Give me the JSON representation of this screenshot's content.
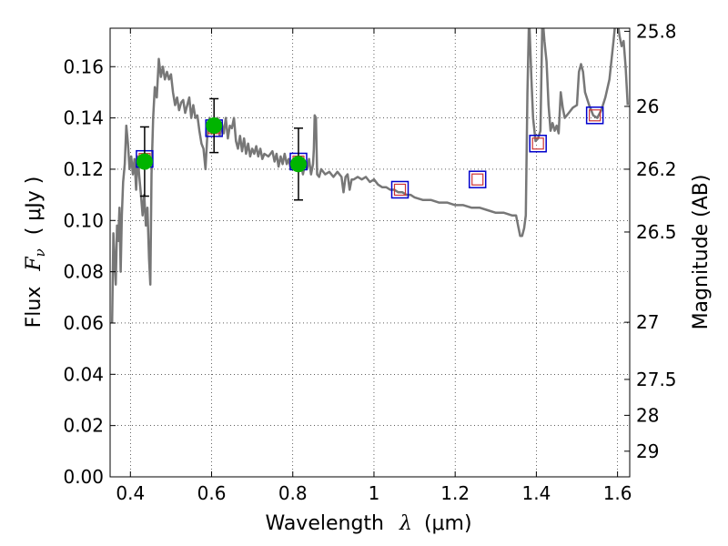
{
  "chart_data": {
    "type": "line",
    "xlabel": {
      "prefix": "Wavelength",
      "symbol": "λ",
      "unit": "(μm)"
    },
    "ylabel": {
      "prefix": "Flux",
      "symbol": "F",
      "subscript": "ν",
      "unit": "( μJy )"
    },
    "y2label": "Magnitude (AB)",
    "xlim": [
      0.35,
      1.63
    ],
    "ylim": [
      0.0,
      0.175
    ],
    "grid": true,
    "x_ticks": [
      {
        "value": 0.4,
        "label": "0.4"
      },
      {
        "value": 0.6,
        "label": "0.6"
      },
      {
        "value": 0.8,
        "label": "0.8"
      },
      {
        "value": 1.0,
        "label": "1"
      },
      {
        "value": 1.2,
        "label": "1.2"
      },
      {
        "value": 1.4,
        "label": "1.4"
      },
      {
        "value": 1.6,
        "label": "1.6"
      }
    ],
    "y_ticks": [
      {
        "value": 0.0,
        "label": "0.00"
      },
      {
        "value": 0.02,
        "label": "0.02"
      },
      {
        "value": 0.04,
        "label": "0.04"
      },
      {
        "value": 0.06,
        "label": "0.06"
      },
      {
        "value": 0.08,
        "label": "0.08"
      },
      {
        "value": 0.1,
        "label": "0.10"
      },
      {
        "value": 0.12,
        "label": "0.12"
      },
      {
        "value": 0.14,
        "label": "0.14"
      },
      {
        "value": 0.16,
        "label": "0.16"
      }
    ],
    "y2_ticks": [
      {
        "flux": 0.1738,
        "label": "25.8"
      },
      {
        "flux": 0.1445,
        "label": "26"
      },
      {
        "flux": 0.12,
        "label": "26.2"
      },
      {
        "flux": 0.0955,
        "label": "26.5"
      },
      {
        "flux": 0.0603,
        "label": "27"
      },
      {
        "flux": 0.038,
        "label": "27.5"
      },
      {
        "flux": 0.024,
        "label": "28"
      },
      {
        "flux": 0.01,
        "label": "29"
      }
    ],
    "model_spectrum": {
      "color": "#777777",
      "points": [
        [
          0.355,
          0.06
        ],
        [
          0.358,
          0.095
        ],
        [
          0.361,
          0.085
        ],
        [
          0.364,
          0.075
        ],
        [
          0.367,
          0.098
        ],
        [
          0.37,
          0.092
        ],
        [
          0.373,
          0.105
        ],
        [
          0.376,
          0.08
        ],
        [
          0.379,
          0.102
        ],
        [
          0.382,
          0.115
        ],
        [
          0.386,
          0.122
        ],
        [
          0.39,
          0.137
        ],
        [
          0.394,
          0.13
        ],
        [
          0.398,
          0.12
        ],
        [
          0.402,
          0.125
        ],
        [
          0.406,
          0.118
        ],
        [
          0.41,
          0.124
        ],
        [
          0.414,
          0.112
        ],
        [
          0.418,
          0.125
        ],
        [
          0.422,
          0.117
        ],
        [
          0.426,
          0.11
        ],
        [
          0.43,
          0.102
        ],
        [
          0.434,
          0.11
        ],
        [
          0.438,
          0.098
        ],
        [
          0.442,
          0.105
        ],
        [
          0.446,
          0.085
        ],
        [
          0.449,
          0.075
        ],
        [
          0.452,
          0.118
        ],
        [
          0.456,
          0.14
        ],
        [
          0.46,
          0.152
        ],
        [
          0.465,
          0.148
        ],
        [
          0.47,
          0.163
        ],
        [
          0.475,
          0.156
        ],
        [
          0.48,
          0.16
        ],
        [
          0.485,
          0.155
        ],
        [
          0.49,
          0.158
        ],
        [
          0.495,
          0.155
        ],
        [
          0.5,
          0.157
        ],
        [
          0.505,
          0.15
        ],
        [
          0.51,
          0.145
        ],
        [
          0.515,
          0.148
        ],
        [
          0.52,
          0.143
        ],
        [
          0.525,
          0.146
        ],
        [
          0.53,
          0.147
        ],
        [
          0.535,
          0.142
        ],
        [
          0.54,
          0.145
        ],
        [
          0.545,
          0.148
        ],
        [
          0.55,
          0.14
        ],
        [
          0.555,
          0.145
        ],
        [
          0.56,
          0.14
        ],
        [
          0.565,
          0.141
        ],
        [
          0.57,
          0.135
        ],
        [
          0.575,
          0.13
        ],
        [
          0.58,
          0.128
        ],
        [
          0.585,
          0.12
        ],
        [
          0.59,
          0.135
        ],
        [
          0.595,
          0.14
        ],
        [
          0.6,
          0.136
        ],
        [
          0.605,
          0.138
        ],
        [
          0.61,
          0.135
        ],
        [
          0.615,
          0.14
        ],
        [
          0.62,
          0.133
        ],
        [
          0.625,
          0.138
        ],
        [
          0.63,
          0.134
        ],
        [
          0.635,
          0.14
        ],
        [
          0.64,
          0.132
        ],
        [
          0.645,
          0.137
        ],
        [
          0.65,
          0.136
        ],
        [
          0.655,
          0.14
        ],
        [
          0.66,
          0.131
        ],
        [
          0.665,
          0.128
        ],
        [
          0.67,
          0.133
        ],
        [
          0.675,
          0.127
        ],
        [
          0.68,
          0.132
        ],
        [
          0.685,
          0.126
        ],
        [
          0.69,
          0.13
        ],
        [
          0.695,
          0.125
        ],
        [
          0.7,
          0.128
        ],
        [
          0.705,
          0.126
        ],
        [
          0.71,
          0.129
        ],
        [
          0.715,
          0.125
        ],
        [
          0.72,
          0.128
        ],
        [
          0.725,
          0.124
        ],
        [
          0.73,
          0.126
        ],
        [
          0.74,
          0.125
        ],
        [
          0.75,
          0.127
        ],
        [
          0.755,
          0.123
        ],
        [
          0.76,
          0.126
        ],
        [
          0.765,
          0.121
        ],
        [
          0.77,
          0.125
        ],
        [
          0.775,
          0.122
        ],
        [
          0.78,
          0.126
        ],
        [
          0.785,
          0.122
        ],
        [
          0.79,
          0.124
        ],
        [
          0.795,
          0.12
        ],
        [
          0.8,
          0.123
        ],
        [
          0.805,
          0.122
        ],
        [
          0.81,
          0.124
        ],
        [
          0.815,
          0.12
        ],
        [
          0.82,
          0.123
        ],
        [
          0.825,
          0.118
        ],
        [
          0.83,
          0.122
        ],
        [
          0.835,
          0.12
        ],
        [
          0.84,
          0.124
        ],
        [
          0.845,
          0.118
        ],
        [
          0.85,
          0.122
        ],
        [
          0.852,
          0.128
        ],
        [
          0.854,
          0.141
        ],
        [
          0.857,
          0.14
        ],
        [
          0.86,
          0.118
        ],
        [
          0.865,
          0.117
        ],
        [
          0.87,
          0.12
        ],
        [
          0.88,
          0.118
        ],
        [
          0.89,
          0.119
        ],
        [
          0.9,
          0.117
        ],
        [
          0.91,
          0.119
        ],
        [
          0.92,
          0.117
        ],
        [
          0.925,
          0.111
        ],
        [
          0.93,
          0.117
        ],
        [
          0.935,
          0.118
        ],
        [
          0.94,
          0.112
        ],
        [
          0.945,
          0.116
        ],
        [
          0.95,
          0.116
        ],
        [
          0.96,
          0.117
        ],
        [
          0.97,
          0.116
        ],
        [
          0.98,
          0.117
        ],
        [
          0.99,
          0.115
        ],
        [
          1.0,
          0.116
        ],
        [
          1.01,
          0.114
        ],
        [
          1.02,
          0.113
        ],
        [
          1.03,
          0.113
        ],
        [
          1.04,
          0.112
        ],
        [
          1.05,
          0.112
        ],
        [
          1.06,
          0.111
        ],
        [
          1.07,
          0.111
        ],
        [
          1.08,
          0.11
        ],
        [
          1.09,
          0.11
        ],
        [
          1.1,
          0.109
        ],
        [
          1.12,
          0.108
        ],
        [
          1.14,
          0.108
        ],
        [
          1.16,
          0.107
        ],
        [
          1.18,
          0.107
        ],
        [
          1.2,
          0.106
        ],
        [
          1.22,
          0.106
        ],
        [
          1.24,
          0.105
        ],
        [
          1.26,
          0.105
        ],
        [
          1.28,
          0.104
        ],
        [
          1.3,
          0.103
        ],
        [
          1.32,
          0.103
        ],
        [
          1.34,
          0.102
        ],
        [
          1.35,
          0.102
        ],
        [
          1.355,
          0.098
        ],
        [
          1.36,
          0.094
        ],
        [
          1.365,
          0.094
        ],
        [
          1.37,
          0.097
        ],
        [
          1.374,
          0.102
        ],
        [
          1.378,
          0.15
        ],
        [
          1.382,
          0.18
        ],
        [
          1.388,
          0.155
        ],
        [
          1.392,
          0.14
        ],
        [
          1.398,
          0.131
        ],
        [
          1.404,
          0.132
        ],
        [
          1.41,
          0.135
        ],
        [
          1.415,
          0.18
        ],
        [
          1.42,
          0.17
        ],
        [
          1.425,
          0.162
        ],
        [
          1.43,
          0.145
        ],
        [
          1.435,
          0.135
        ],
        [
          1.44,
          0.138
        ],
        [
          1.445,
          0.135
        ],
        [
          1.45,
          0.137
        ],
        [
          1.455,
          0.134
        ],
        [
          1.46,
          0.15
        ],
        [
          1.465,
          0.144
        ],
        [
          1.47,
          0.14
        ],
        [
          1.48,
          0.142
        ],
        [
          1.49,
          0.144
        ],
        [
          1.5,
          0.145
        ],
        [
          1.505,
          0.158
        ],
        [
          1.51,
          0.161
        ],
        [
          1.515,
          0.158
        ],
        [
          1.52,
          0.15
        ],
        [
          1.53,
          0.145
        ],
        [
          1.54,
          0.141
        ],
        [
          1.55,
          0.14
        ],
        [
          1.56,
          0.143
        ],
        [
          1.57,
          0.148
        ],
        [
          1.58,
          0.155
        ],
        [
          1.59,
          0.17
        ],
        [
          1.595,
          0.178
        ],
        [
          1.6,
          0.178
        ],
        [
          1.605,
          0.172
        ],
        [
          1.61,
          0.168
        ],
        [
          1.615,
          0.17
        ],
        [
          1.62,
          0.16
        ],
        [
          1.625,
          0.145
        ]
      ]
    },
    "model_photometry": {
      "outer_color": "#0000cc",
      "inner_color": "#cc3333",
      "points": [
        {
          "x": 0.435,
          "y": 0.124
        },
        {
          "x": 0.606,
          "y": 0.136
        },
        {
          "x": 0.814,
          "y": 0.123
        },
        {
          "x": 1.064,
          "y": 0.112
        },
        {
          "x": 1.255,
          "y": 0.116
        },
        {
          "x": 1.404,
          "y": 0.13
        },
        {
          "x": 1.544,
          "y": 0.141
        }
      ]
    },
    "observed": {
      "color": "#00b400",
      "points": [
        {
          "x": 0.435,
          "y": 0.123,
          "err": 0.0135
        },
        {
          "x": 0.606,
          "y": 0.137,
          "err": 0.0105
        },
        {
          "x": 0.814,
          "y": 0.122,
          "err": 0.014
        }
      ]
    }
  }
}
